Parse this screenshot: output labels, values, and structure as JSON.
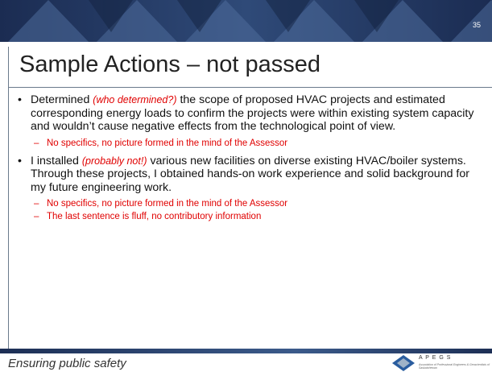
{
  "slide_number": "35",
  "title": "Sample Actions – not passed",
  "bullets": [
    {
      "before": "Determined ",
      "aside": "(who determined?)",
      "after": " the scope of proposed HVAC projects and estimated corresponding energy loads to confirm the projects were within existing system capacity and wouldn’t cause negative effects from the technological point of view.",
      "notes": [
        "No specifics, no picture formed in the mind of the Assessor"
      ]
    },
    {
      "before": "I installed ",
      "aside": "(probably not!)",
      "after": " various new facilities on diverse existing HVAC/boiler systems. Through these projects, I obtained hands-on work experience and solid background for my future engineering work.",
      "notes": [
        "No specifics, no picture formed in the mind of the Assessor",
        "The last sentence is fluff, no contributory information"
      ]
    }
  ],
  "footer": "Ensuring public safety",
  "logo": {
    "name": "A P E G S",
    "tagline": "Association of Professional Engineers & Geoscientists of Saskatchewan"
  }
}
